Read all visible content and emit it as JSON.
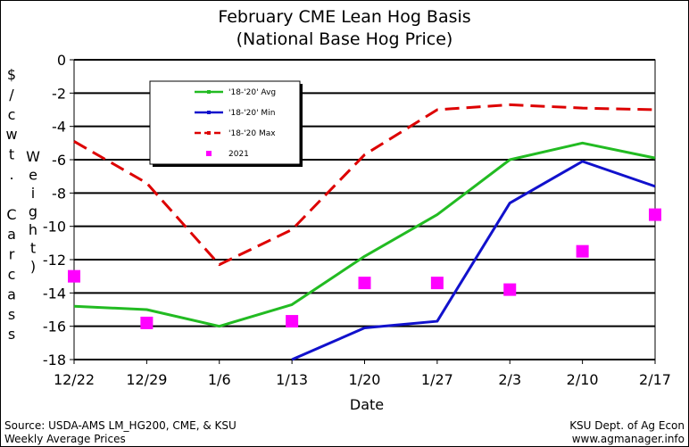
{
  "header": {
    "title_line1": "February CME Lean Hog Basis",
    "title_line2": "(National Base Hog Price)"
  },
  "footer": {
    "source": "Source:  USDA-AMS LM_HG200, CME, & KSU",
    "weekly": "Weekly Average Prices",
    "org": "KSU Dept. of Ag Econ",
    "site": "www.agmanager.info"
  },
  "chart_data": {
    "type": "line",
    "title": "February CME Lean Hog Basis",
    "subtitle": "(National Base Hog Price)",
    "xlabel": "Date",
    "ylabel": "$/cwt. Carcass Weight",
    "ylabel_left": "$/cwt. Carcass",
    "ylabel_right": "Weight)",
    "categories": [
      "12/22",
      "12/29",
      "1/6",
      "1/13",
      "1/20",
      "1/27",
      "2/3",
      "2/10",
      "2/17"
    ],
    "ylim": [
      -18,
      0
    ],
    "yticks": [
      0,
      -2,
      -4,
      -6,
      -8,
      -10,
      -12,
      -14,
      -16,
      -18
    ],
    "grid": true,
    "legend_position": "upper-left inside plot",
    "series": [
      {
        "name": "'18-'20' Avg",
        "color": "#22bb22",
        "style": "solid",
        "values": [
          -14.8,
          -15.0,
          -16.0,
          -14.7,
          -11.8,
          -9.3,
          -6.0,
          -5.0,
          -5.9
        ]
      },
      {
        "name": "'18-'20' Min",
        "color": "#1111cc",
        "style": "solid",
        "values": [
          null,
          null,
          null,
          -18.0,
          -16.1,
          -15.7,
          -8.6,
          -6.1,
          -7.6
        ]
      },
      {
        "name": "'18-'20 Max",
        "color": "#dd0000",
        "style": "dashed",
        "values": [
          -4.9,
          -7.4,
          -12.3,
          -10.2,
          -5.7,
          -3.0,
          -2.7,
          -2.9,
          -3.0
        ]
      },
      {
        "name": "2021",
        "color": "#ff00ff",
        "style": "markers",
        "values": [
          -13.0,
          -15.8,
          null,
          -15.7,
          -13.4,
          -13.4,
          -13.8,
          -11.5,
          -9.3
        ]
      }
    ]
  }
}
